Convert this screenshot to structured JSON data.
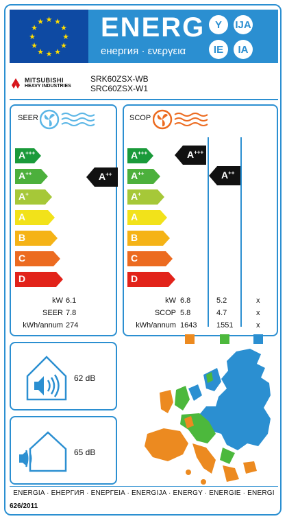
{
  "header": {
    "energy_word": "ENERG",
    "energy_subtitle": "енергия · ενεργεια",
    "lang_codes": [
      "Y",
      "IJA",
      "IE",
      "IA"
    ]
  },
  "brand": {
    "logo_text": "MITSUBISHI",
    "logo_subtext": "HEAVY INDUSTRIES",
    "model_indoor": "SRK60ZSX-WB",
    "model_outdoor": "SRC60ZSX-W1"
  },
  "seer": {
    "label": "SEER",
    "classes": [
      {
        "name": "A",
        "sup": "+++",
        "color": "#1a9a3a"
      },
      {
        "name": "A",
        "sup": "++",
        "color": "#4cb03c"
      },
      {
        "name": "A",
        "sup": "+",
        "color": "#a6c838"
      },
      {
        "name": "A",
        "sup": "",
        "color": "#f2e21a"
      },
      {
        "name": "B",
        "sup": "",
        "color": "#f5b316"
      },
      {
        "name": "C",
        "sup": "",
        "color": "#ec6b20"
      },
      {
        "name": "D",
        "sup": "",
        "color": "#e2231a"
      }
    ],
    "rating": {
      "name": "A",
      "sup": "++"
    },
    "metrics": [
      {
        "label": "kW",
        "value": "6.1"
      },
      {
        "label": "SEER",
        "value": "7.8"
      },
      {
        "label": "kWh/annum",
        "value": "274"
      }
    ]
  },
  "scop": {
    "label": "SCOP",
    "classes": [
      {
        "name": "A",
        "sup": "+++",
        "color": "#1a9a3a"
      },
      {
        "name": "A",
        "sup": "++",
        "color": "#4cb03c"
      },
      {
        "name": "A",
        "sup": "+",
        "color": "#a6c838"
      },
      {
        "name": "A",
        "sup": "",
        "color": "#f2e21a"
      },
      {
        "name": "B",
        "sup": "",
        "color": "#f5b316"
      },
      {
        "name": "C",
        "sup": "",
        "color": "#ec6b20"
      },
      {
        "name": "D",
        "sup": "",
        "color": "#e2231a"
      }
    ],
    "ratings": [
      {
        "name": "A",
        "sup": "+++"
      },
      {
        "name": "A",
        "sup": "++"
      }
    ],
    "metric_labels": [
      "kW",
      "SCOP",
      "kWh/annum"
    ],
    "columns": [
      {
        "values": [
          "6.8",
          "5.8",
          "1643"
        ],
        "color": "#ec8a20"
      },
      {
        "values": [
          "5.2",
          "4.7",
          "1551"
        ],
        "color": "#4cb83c"
      },
      {
        "values": [
          "x",
          "x",
          "x"
        ],
        "color": "#2b8fd1"
      }
    ]
  },
  "sound": {
    "indoor": "62 dB",
    "outdoor": "65 dB"
  },
  "footer": {
    "languages": "ENERGIA · ЕНЕРГИЯ · ΕΝΕΡΓΕΙΑ · ENERGIJA · ENERGY · ENERGIE · ENERGI",
    "regulation": "626/2011"
  }
}
